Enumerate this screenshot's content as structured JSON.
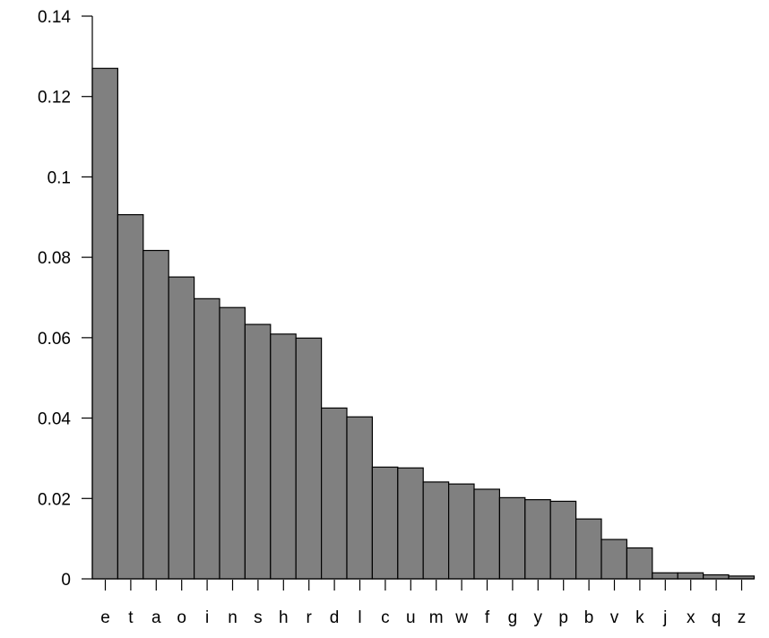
{
  "chart_data": {
    "type": "bar",
    "title": "",
    "xlabel": "",
    "ylabel": "",
    "categories": [
      "e",
      "t",
      "a",
      "o",
      "i",
      "n",
      "s",
      "h",
      "r",
      "d",
      "l",
      "c",
      "u",
      "m",
      "w",
      "f",
      "g",
      "y",
      "p",
      "b",
      "v",
      "k",
      "j",
      "x",
      "q",
      "z"
    ],
    "values": [
      0.127,
      0.0906,
      0.0817,
      0.0751,
      0.0697,
      0.0675,
      0.0633,
      0.0609,
      0.0599,
      0.0425,
      0.0403,
      0.0278,
      0.0276,
      0.0241,
      0.0236,
      0.0223,
      0.0202,
      0.0197,
      0.0193,
      0.0149,
      0.0098,
      0.0077,
      0.0015,
      0.0015,
      0.001,
      0.0007
    ],
    "ylim": [
      0,
      0.14
    ],
    "yticks": [
      "0",
      "0.02",
      "0.04",
      "0.06",
      "0.08",
      "0.1",
      "0.12",
      "0.14"
    ],
    "grid": false,
    "colors": {
      "bar_fill": "#808080",
      "bar_stroke": "#000000"
    }
  }
}
